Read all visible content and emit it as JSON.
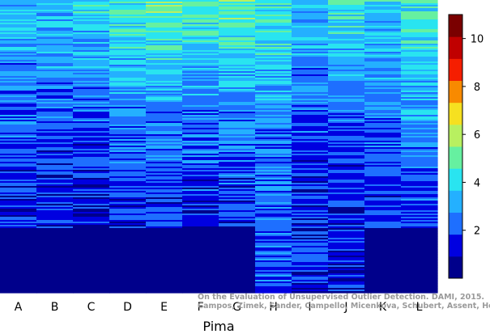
{
  "chart_data": {
    "type": "heatmap",
    "title": "",
    "xlabel": "Pima",
    "ylabel": "",
    "categories": [
      "A",
      "B",
      "C",
      "D",
      "E",
      "F",
      "G",
      "H",
      "I",
      "J",
      "K",
      "L"
    ],
    "colorbar": {
      "range": [
        0,
        11
      ],
      "ticks": [
        2,
        4,
        6,
        8,
        10
      ],
      "colors": [
        "#00008B",
        "#0000E0",
        "#1E6FFF",
        "#24B0FF",
        "#29E4F0",
        "#66F0A0",
        "#B8F060",
        "#F6E020",
        "#F88A00",
        "#F51E00",
        "#C00000",
        "#7A0000"
      ]
    },
    "columns_summary": [
      {
        "name": "A",
        "top_level": 4,
        "mid_level": 2,
        "low_level": 1
      },
      {
        "name": "B",
        "top_level": 4,
        "mid_level": 2,
        "low_level": 1
      },
      {
        "name": "C",
        "top_level": 4.5,
        "mid_level": 2,
        "low_level": 1
      },
      {
        "name": "D",
        "top_level": 5,
        "mid_level": 2.5,
        "low_level": 1
      },
      {
        "name": "E",
        "top_level": 5.5,
        "mid_level": 2.5,
        "low_level": 1
      },
      {
        "name": "F",
        "top_level": 5,
        "mid_level": 2.5,
        "low_level": 1
      },
      {
        "name": "G",
        "top_level": 5.5,
        "mid_level": 2.5,
        "low_level": 1
      },
      {
        "name": "H",
        "top_level": 5,
        "mid_level": 3,
        "low_level": 2
      },
      {
        "name": "I",
        "top_level": 4,
        "mid_level": 2,
        "low_level": 1.5
      },
      {
        "name": "J",
        "top_level": 5,
        "mid_level": 2,
        "low_level": 1.5
      },
      {
        "name": "K",
        "top_level": 4,
        "mid_level": 2.5,
        "low_level": 1
      },
      {
        "name": "L",
        "top_level": 5,
        "mid_level": 3,
        "low_level": 1
      }
    ],
    "grid": false,
    "legend": "right"
  },
  "credit": {
    "line1": "On the Evaluation of Unsupervised Outlier Detection. DAMI, 2015.",
    "line2": "Campos, Zimek, Sander, Campello, Micenkova, Schubert, Assent, Houle"
  }
}
